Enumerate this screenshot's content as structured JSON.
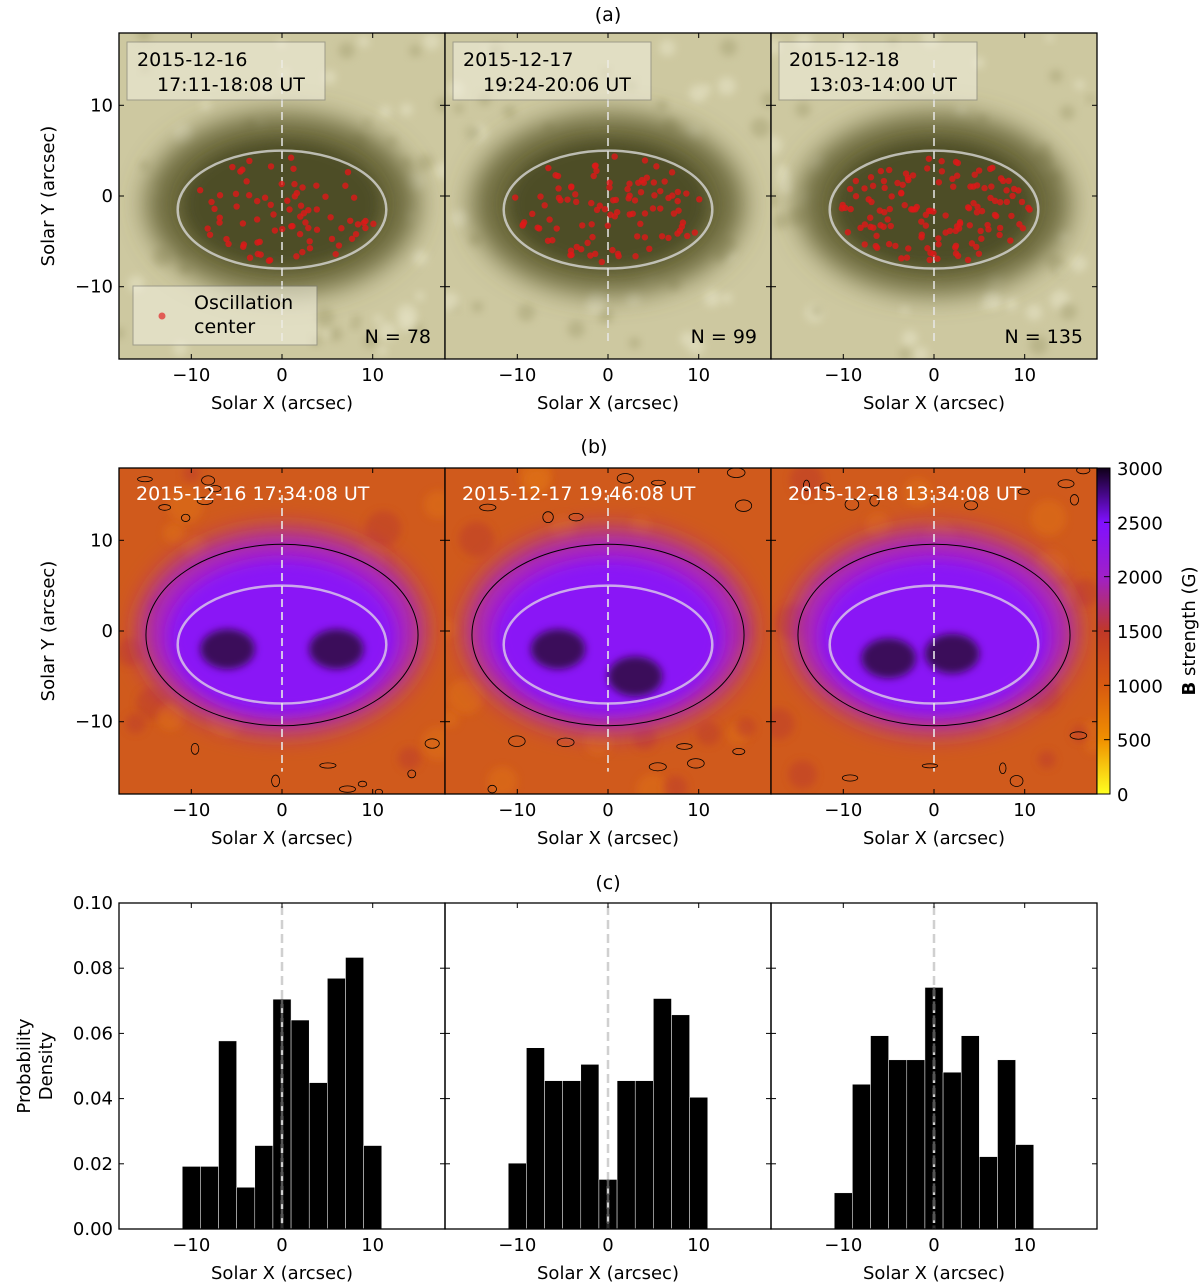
{
  "figure": {
    "panel_labels": [
      "(a)",
      "(b)",
      "(c)"
    ],
    "xlabel": "Solar X (arcsec)",
    "ylabel": "Solar Y (arcsec)",
    "x_ticks": [
      "−10",
      "0",
      "10"
    ],
    "y_ticks": [
      "10",
      "0",
      "−10"
    ]
  },
  "row_a": {
    "panels": [
      {
        "date": "2015-12-16",
        "time": "17:11-18:08 UT",
        "count_label": "N = 78",
        "count": 78
      },
      {
        "date": "2015-12-17",
        "time": "19:24-20:06 UT",
        "count_label": "N = 99",
        "count": 99
      },
      {
        "date": "2015-12-18",
        "time": "13:03-14:00 UT",
        "count_label": "N = 135",
        "count": 135
      }
    ],
    "legend": {
      "line1": "Oscillation",
      "line2": "center",
      "marker_color": "#e03030"
    },
    "image_colors": {
      "photosphere": "#cdc8a0",
      "umbra": "#4d4d28"
    }
  },
  "row_b": {
    "timestamps": [
      "2015-12-16 17:34:08 UT",
      "2015-12-17 19:46:08 UT",
      "2015-12-18 13:34:08 UT"
    ],
    "colorbar": {
      "label_bold": "B",
      "label_rest": " strength (G)",
      "ticks": [
        "0",
        "500",
        "1000",
        "1500",
        "2000",
        "2500",
        "3000"
      ],
      "range": [
        0,
        3000
      ]
    }
  },
  "row_c": {
    "ylabel_line1": "Probability",
    "ylabel_line2": "Density",
    "y_ticks": [
      "0.00",
      "0.02",
      "0.04",
      "0.06",
      "0.08",
      "0.10"
    ]
  },
  "chart_data": [
    {
      "type": "bar",
      "subtype": "histogram",
      "bin_edges": [
        -11,
        -9,
        -7,
        -5,
        -3,
        -1,
        1,
        3,
        5,
        7,
        9,
        11
      ],
      "values": [
        0.0192,
        0.0192,
        0.0577,
        0.0128,
        0.0256,
        0.0705,
        0.0641,
        0.0449,
        0.0769,
        0.0833,
        0.0256
      ],
      "xlabel": "Solar X (arcsec)",
      "ylabel": "Probability Density",
      "xlim": [
        -18,
        18
      ],
      "ylim": [
        0,
        0.1
      ],
      "bar_color": "#000000",
      "reference_line_x": 0
    },
    {
      "type": "bar",
      "subtype": "histogram",
      "bin_edges": [
        -11,
        -9,
        -7,
        -5,
        -3,
        -1,
        1,
        3,
        5,
        7,
        9,
        11
      ],
      "values": [
        0.0202,
        0.0556,
        0.0455,
        0.0455,
        0.0505,
        0.0152,
        0.0455,
        0.0455,
        0.0707,
        0.0657,
        0.0404
      ],
      "xlabel": "Solar X (arcsec)",
      "xlim": [
        -18,
        18
      ],
      "ylim": [
        0,
        0.1
      ],
      "bar_color": "#000000",
      "reference_line_x": 0
    },
    {
      "type": "bar",
      "subtype": "histogram",
      "bin_edges": [
        -11,
        -9,
        -7,
        -5,
        -3,
        -1,
        1,
        3,
        5,
        7,
        9,
        11
      ],
      "values": [
        0.0111,
        0.0444,
        0.0593,
        0.0519,
        0.0519,
        0.0741,
        0.0481,
        0.0593,
        0.0222,
        0.0519,
        0.0259
      ],
      "xlabel": "Solar X (arcsec)",
      "xlim": [
        -18,
        18
      ],
      "ylim": [
        0,
        0.1
      ],
      "bar_color": "#000000",
      "reference_line_x": 0
    }
  ]
}
